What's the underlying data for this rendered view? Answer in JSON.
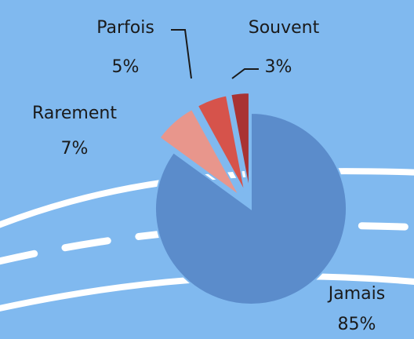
{
  "chart_data": {
    "type": "pie",
    "categories": [
      "Jamais",
      "Rarement",
      "Parfois",
      "Souvent"
    ],
    "values": [
      85,
      7,
      5,
      3
    ],
    "value_labels": [
      "85%",
      "7%",
      "5%",
      "3%"
    ],
    "colors": [
      "#5b8ccb",
      "#e8968c",
      "#d6534b",
      "#a93333"
    ]
  }
}
